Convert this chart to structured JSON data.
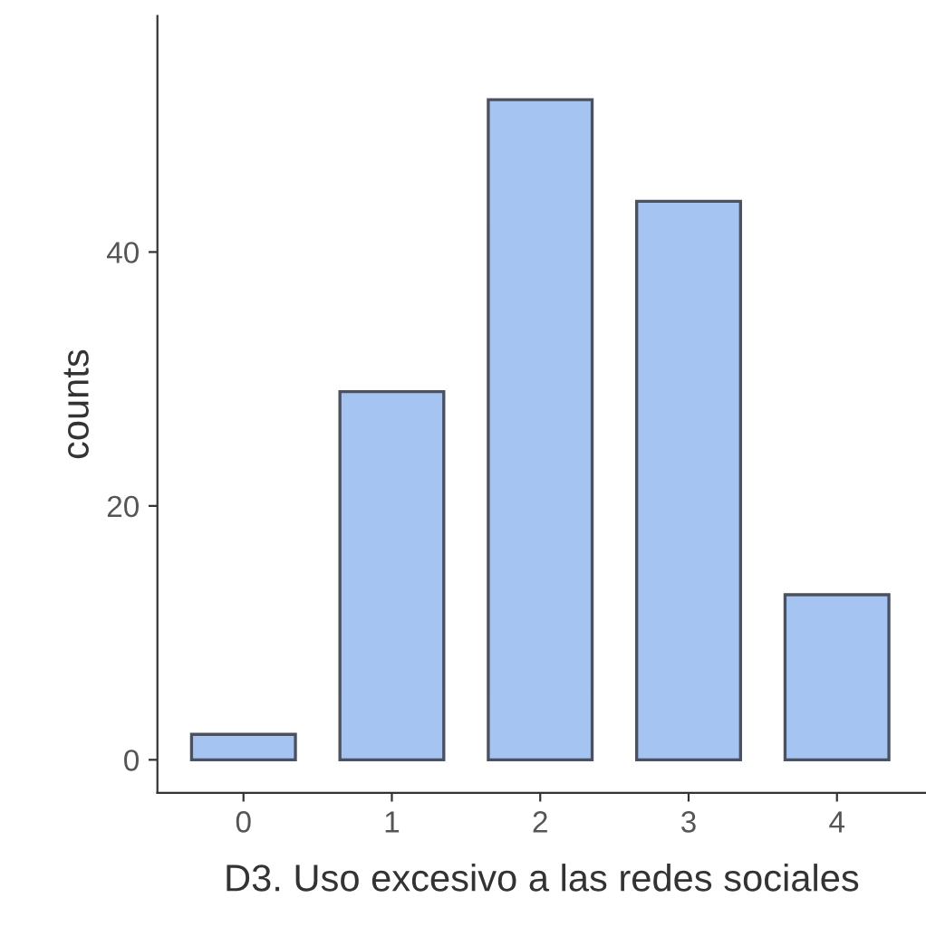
{
  "chart_data": {
    "type": "bar",
    "xlabel": "D3. Uso excesivo a las redes sociales",
    "ylabel": "counts",
    "categories": [
      "0",
      "1",
      "2",
      "3",
      "4"
    ],
    "values": [
      2,
      29,
      52,
      44,
      13
    ],
    "color": "#a6c4f2",
    "ylim": [
      -2.6,
      58.6
    ],
    "yticks": [
      0,
      20,
      40
    ],
    "grid": false
  }
}
